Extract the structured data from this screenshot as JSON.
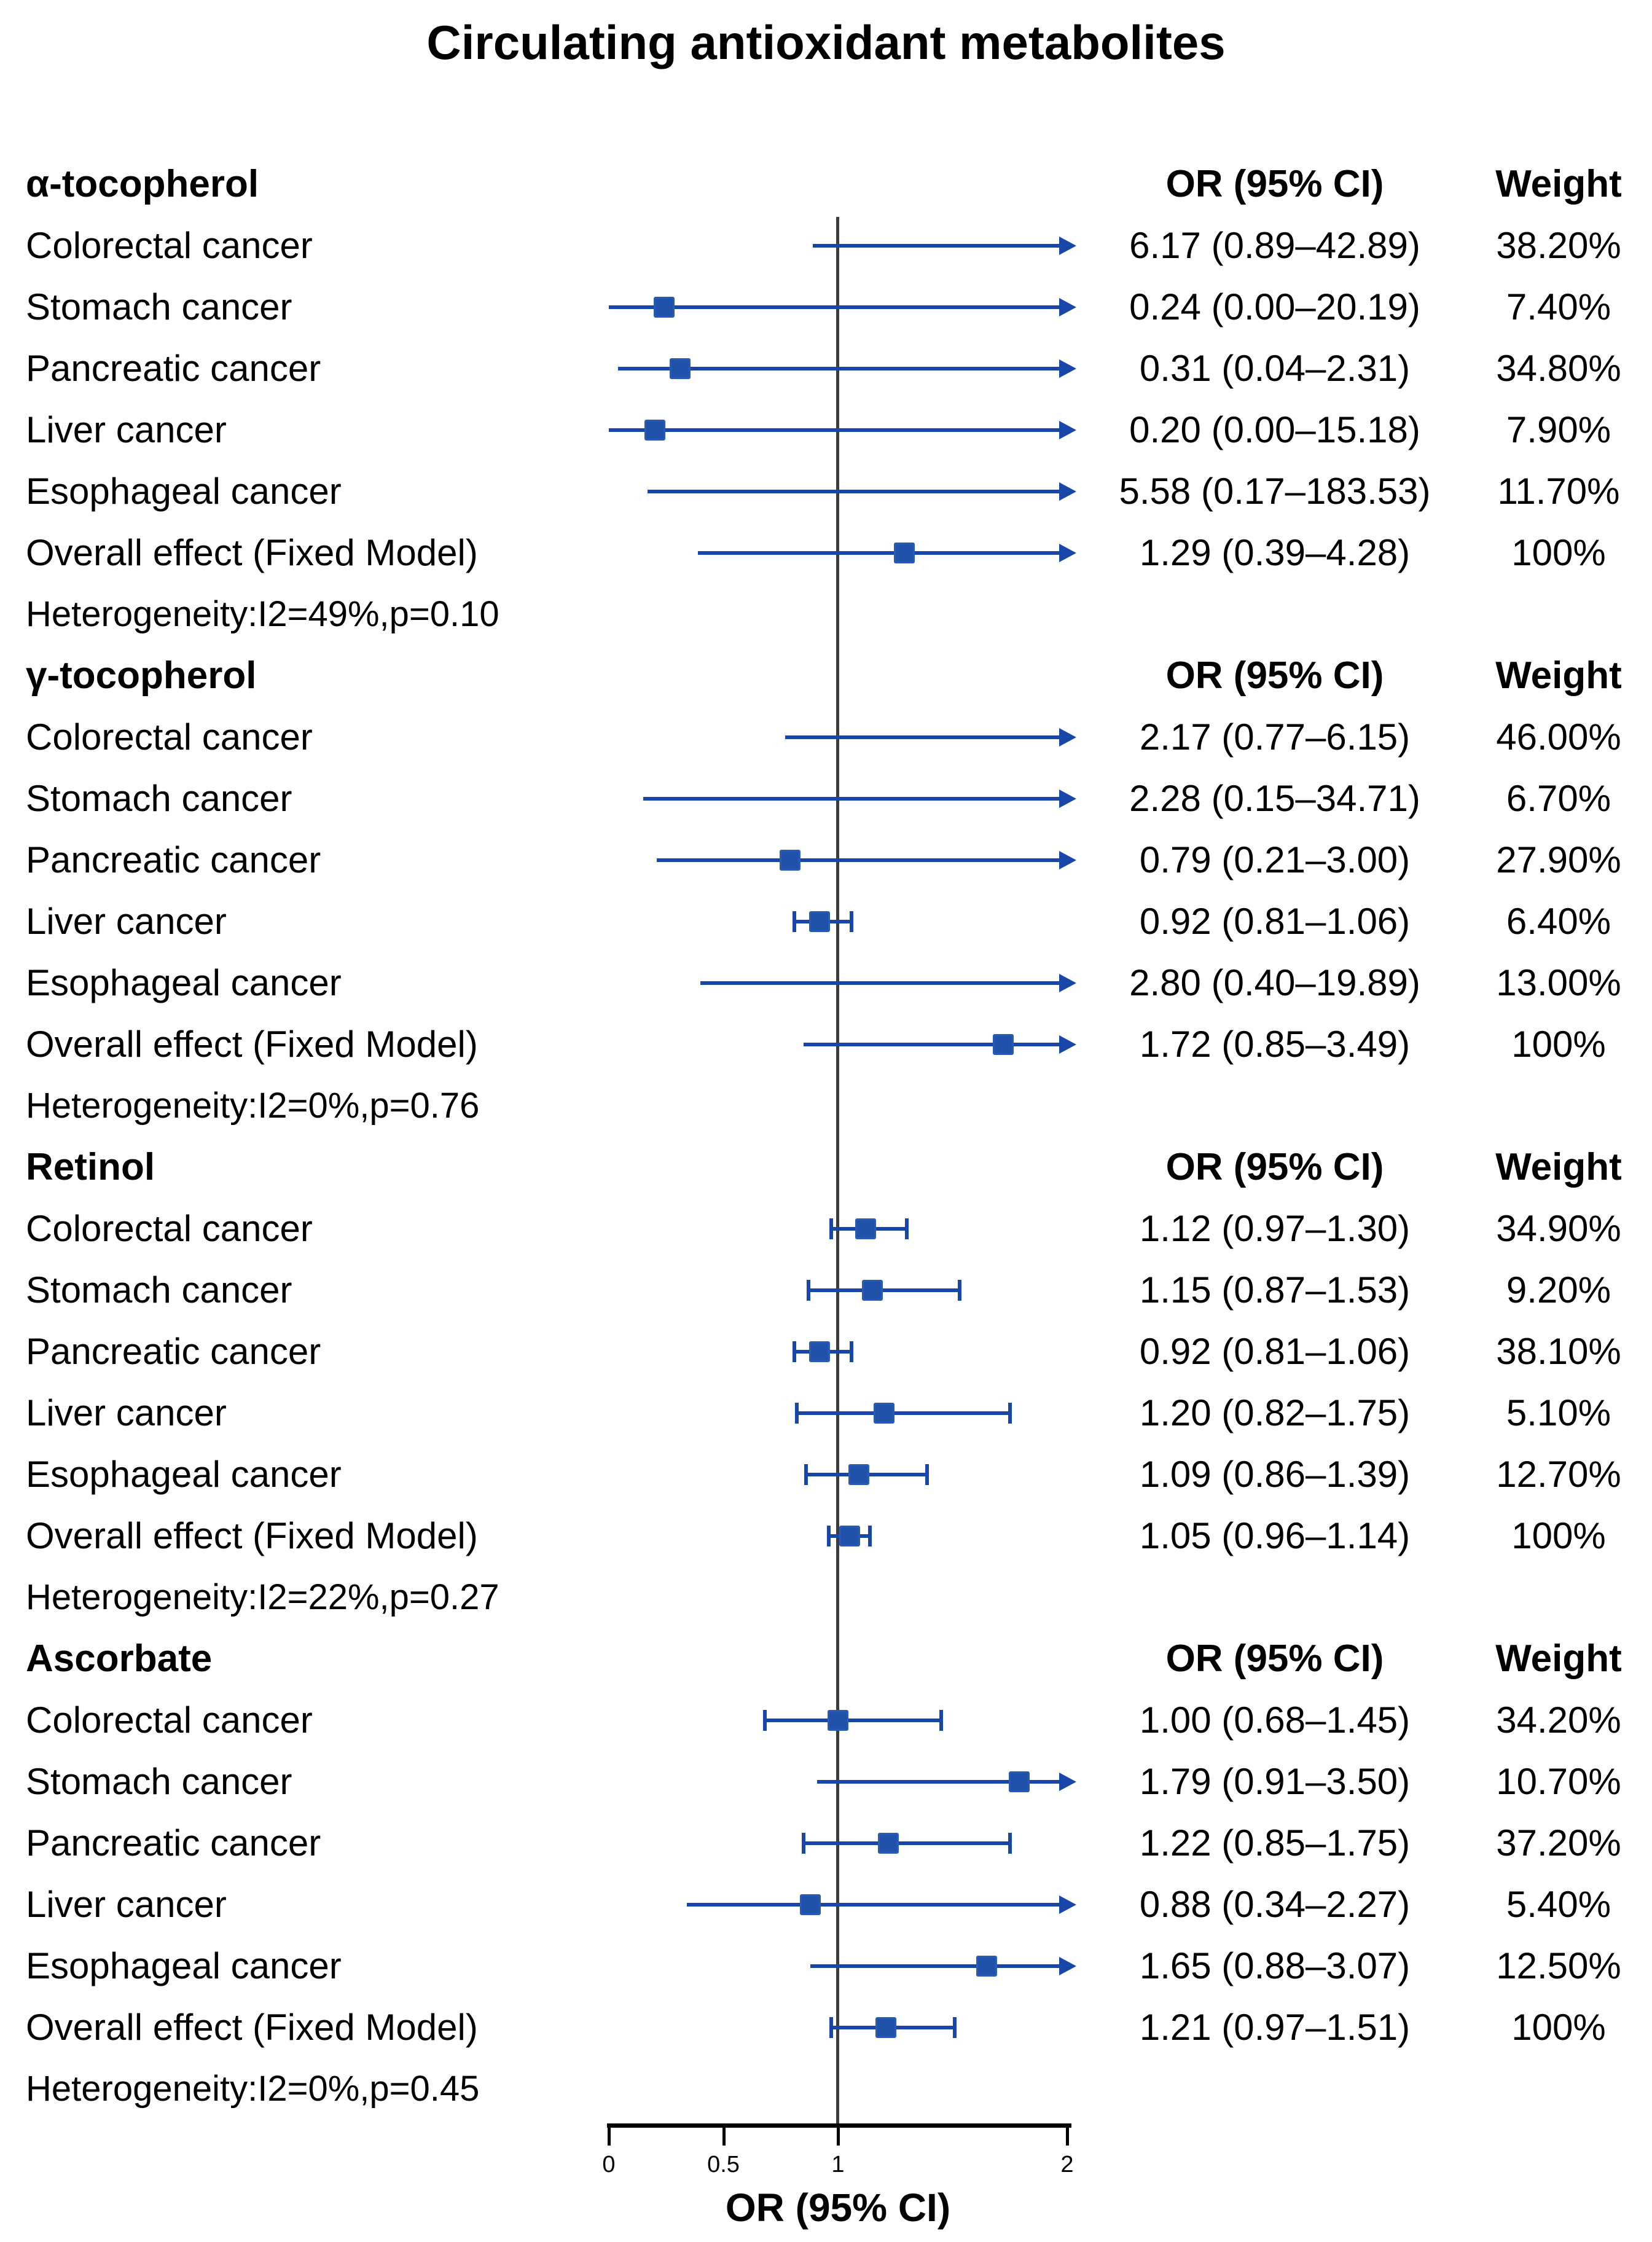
{
  "axis": {
    "ticks": [
      {
        "value": 0,
        "label": "0"
      },
      {
        "value": 0.5,
        "label": "0.5"
      },
      {
        "value": 1,
        "label": "1"
      },
      {
        "value": 2,
        "label": "2"
      }
    ]
  },
  "colors": {
    "ci_line": "#1847a8",
    "marker": "#1f51a8",
    "marker_border": "#2a5ab8",
    "reference_line": "#3c3c3c",
    "axis": "#000000",
    "text": "#000000"
  },
  "chart_data": {
    "type": "scatter",
    "variant": "forest-plot",
    "title": "Circulating antioxidant metabolites",
    "xlabel": "OR (95% CI)",
    "or_header": "OR (95% CI)",
    "weight_header": "Weight",
    "xlim": [
      0,
      2
    ],
    "x_ticks": [
      0,
      0.5,
      1,
      2
    ],
    "reference_line_x": 1,
    "grid": false,
    "groups": [
      {
        "name": "α-tocopherol",
        "heterogeneity": "Heterogeneity:I2=49%,p=0.10",
        "rows": [
          {
            "label": "Colorectal cancer",
            "or": 6.17,
            "ci_low": 0.89,
            "ci_high": 42.89,
            "or_text": "6.17 (0.89–42.89)",
            "weight": "38.20%"
          },
          {
            "label": "Stomach cancer",
            "or": 0.24,
            "ci_low": 0.0,
            "ci_high": 20.19,
            "or_text": "0.24 (0.00–20.19)",
            "weight": "7.40%"
          },
          {
            "label": "Pancreatic cancer",
            "or": 0.31,
            "ci_low": 0.04,
            "ci_high": 2.31,
            "or_text": "0.31 (0.04–2.31)",
            "weight": "34.80%"
          },
          {
            "label": "Liver cancer",
            "or": 0.2,
            "ci_low": 0.0,
            "ci_high": 15.18,
            "or_text": "0.20 (0.00–15.18)",
            "weight": "7.90%"
          },
          {
            "label": "Esophageal cancer",
            "or": 5.58,
            "ci_low": 0.17,
            "ci_high": 183.53,
            "or_text": "5.58 (0.17–183.53)",
            "weight": "11.70%"
          },
          {
            "label": "Overall effect (Fixed Model)",
            "or": 1.29,
            "ci_low": 0.39,
            "ci_high": 4.28,
            "or_text": "1.29 (0.39–4.28)",
            "weight": "100%"
          }
        ]
      },
      {
        "name": "γ-tocopherol",
        "heterogeneity": "Heterogeneity:I2=0%,p=0.76",
        "rows": [
          {
            "label": "Colorectal cancer",
            "or": 2.17,
            "ci_low": 0.77,
            "ci_high": 6.15,
            "or_text": "2.17 (0.77–6.15)",
            "weight": "46.00%"
          },
          {
            "label": "Stomach cancer",
            "or": 2.28,
            "ci_low": 0.15,
            "ci_high": 34.71,
            "or_text": "2.28 (0.15–34.71)",
            "weight": "6.70%"
          },
          {
            "label": "Pancreatic cancer",
            "or": 0.79,
            "ci_low": 0.21,
            "ci_high": 3.0,
            "or_text": "0.79 (0.21–3.00)",
            "weight": "27.90%"
          },
          {
            "label": "Liver cancer",
            "or": 0.92,
            "ci_low": 0.81,
            "ci_high": 1.06,
            "or_text": "0.92 (0.81–1.06)",
            "weight": "6.40%"
          },
          {
            "label": "Esophageal cancer",
            "or": 2.8,
            "ci_low": 0.4,
            "ci_high": 19.89,
            "or_text": "2.80 (0.40–19.89)",
            "weight": "13.00%"
          },
          {
            "label": "Overall effect (Fixed Model)",
            "or": 1.72,
            "ci_low": 0.85,
            "ci_high": 3.49,
            "or_text": "1.72 (0.85–3.49)",
            "weight": "100%"
          }
        ]
      },
      {
        "name": "Retinol",
        "heterogeneity": "Heterogeneity:I2=22%,p=0.27",
        "rows": [
          {
            "label": "Colorectal cancer",
            "or": 1.12,
            "ci_low": 0.97,
            "ci_high": 1.3,
            "or_text": "1.12 (0.97–1.30)",
            "weight": "34.90%"
          },
          {
            "label": "Stomach cancer",
            "or": 1.15,
            "ci_low": 0.87,
            "ci_high": 1.53,
            "or_text": "1.15 (0.87–1.53)",
            "weight": "9.20%"
          },
          {
            "label": "Pancreatic cancer",
            "or": 0.92,
            "ci_low": 0.81,
            "ci_high": 1.06,
            "or_text": "0.92 (0.81–1.06)",
            "weight": "38.10%"
          },
          {
            "label": "Liver cancer",
            "or": 1.2,
            "ci_low": 0.82,
            "ci_high": 1.75,
            "or_text": "1.20 (0.82–1.75)",
            "weight": "5.10%"
          },
          {
            "label": "Esophageal cancer",
            "or": 1.09,
            "ci_low": 0.86,
            "ci_high": 1.39,
            "or_text": "1.09 (0.86–1.39)",
            "weight": "12.70%"
          },
          {
            "label": "Overall effect (Fixed Model)",
            "or": 1.05,
            "ci_low": 0.96,
            "ci_high": 1.14,
            "or_text": "1.05 (0.96–1.14)",
            "weight": "100%"
          }
        ]
      },
      {
        "name": "Ascorbate",
        "heterogeneity": "Heterogeneity:I2=0%,p=0.45",
        "rows": [
          {
            "label": "Colorectal cancer",
            "or": 1.0,
            "ci_low": 0.68,
            "ci_high": 1.45,
            "or_text": "1.00 (0.68–1.45)",
            "weight": "34.20%"
          },
          {
            "label": "Stomach cancer",
            "or": 1.79,
            "ci_low": 0.91,
            "ci_high": 3.5,
            "or_text": "1.79 (0.91–3.50)",
            "weight": "10.70%"
          },
          {
            "label": "Pancreatic cancer",
            "or": 1.22,
            "ci_low": 0.85,
            "ci_high": 1.75,
            "or_text": "1.22 (0.85–1.75)",
            "weight": "37.20%"
          },
          {
            "label": "Liver cancer",
            "or": 0.88,
            "ci_low": 0.34,
            "ci_high": 2.27,
            "or_text": "0.88 (0.34–2.27)",
            "weight": "5.40%"
          },
          {
            "label": "Esophageal cancer",
            "or": 1.65,
            "ci_low": 0.88,
            "ci_high": 3.07,
            "or_text": "1.65 (0.88–3.07)",
            "weight": "12.50%"
          },
          {
            "label": "Overall effect (Fixed Model)",
            "or": 1.21,
            "ci_low": 0.97,
            "ci_high": 1.51,
            "or_text": "1.21 (0.97–1.51)",
            "weight": "100%"
          }
        ]
      }
    ]
  }
}
